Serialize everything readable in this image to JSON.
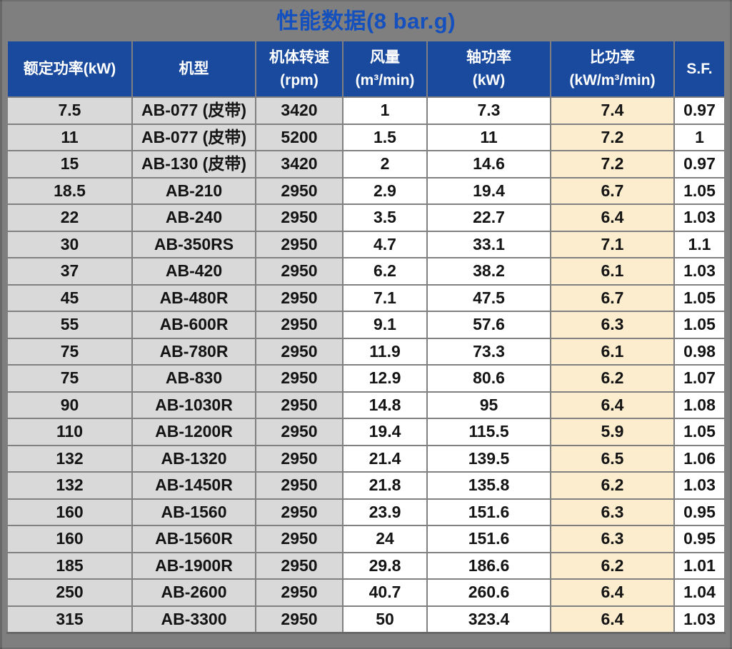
{
  "colors": {
    "page_bg": "#7F7F7F",
    "title_color": "#1450BE",
    "header_bg": "#1A4A9E",
    "header_text": "#FFFFFF",
    "row_bg_gray": "#D9D9D9",
    "row_bg_white": "#FFFFFF",
    "row_bg_cream": "#FBEDCE",
    "border_color": "#808080"
  },
  "page": {
    "title": "性能数据(8 bar.g)"
  },
  "table": {
    "columns": [
      {
        "id": "rated-power",
        "lines": [
          "额定功率(kW)"
        ]
      },
      {
        "id": "model",
        "lines": [
          "机型"
        ]
      },
      {
        "id": "rotor-speed",
        "lines": [
          "机体转速",
          "(rpm)"
        ]
      },
      {
        "id": "air-flow",
        "lines": [
          "风量",
          "(m³/min)"
        ]
      },
      {
        "id": "shaft-power",
        "lines": [
          "轴功率",
          "(kW)"
        ]
      },
      {
        "id": "specific-power",
        "lines": [
          "比功率",
          "(kW/m³/min)"
        ]
      },
      {
        "id": "service-factor",
        "lines": [
          "S.F."
        ]
      }
    ],
    "rows": [
      [
        "7.5",
        "AB-077 (皮带)",
        "3420",
        "1",
        "7.3",
        "7.4",
        "0.97"
      ],
      [
        "11",
        "AB-077 (皮带)",
        "5200",
        "1.5",
        "11",
        "7.2",
        "1"
      ],
      [
        "15",
        "AB-130 (皮带)",
        "3420",
        "2",
        "14.6",
        "7.2",
        "0.97"
      ],
      [
        "18.5",
        "AB-210",
        "2950",
        "2.9",
        "19.4",
        "6.7",
        "1.05"
      ],
      [
        "22",
        "AB-240",
        "2950",
        "3.5",
        "22.7",
        "6.4",
        "1.03"
      ],
      [
        "30",
        "AB-350RS",
        "2950",
        "4.7",
        "33.1",
        "7.1",
        "1.1"
      ],
      [
        "37",
        "AB-420",
        "2950",
        "6.2",
        "38.2",
        "6.1",
        "1.03"
      ],
      [
        "45",
        "AB-480R",
        "2950",
        "7.1",
        "47.5",
        "6.7",
        "1.05"
      ],
      [
        "55",
        "AB-600R",
        "2950",
        "9.1",
        "57.6",
        "6.3",
        "1.05"
      ],
      [
        "75",
        "AB-780R",
        "2950",
        "11.9",
        "73.3",
        "6.1",
        "0.98"
      ],
      [
        "75",
        "AB-830",
        "2950",
        "12.9",
        "80.6",
        "6.2",
        "1.07"
      ],
      [
        "90",
        "AB-1030R",
        "2950",
        "14.8",
        "95",
        "6.4",
        "1.08"
      ],
      [
        "110",
        "AB-1200R",
        "2950",
        "19.4",
        "115.5",
        "5.9",
        "1.05"
      ],
      [
        "132",
        "AB-1320",
        "2950",
        "21.4",
        "139.5",
        "6.5",
        "1.06"
      ],
      [
        "132",
        "AB-1450R",
        "2950",
        "21.8",
        "135.8",
        "6.2",
        "1.03"
      ],
      [
        "160",
        "AB-1560",
        "2950",
        "23.9",
        "151.6",
        "6.3",
        "0.95"
      ],
      [
        "160",
        "AB-1560R",
        "2950",
        "24",
        "151.6",
        "6.3",
        "0.95"
      ],
      [
        "185",
        "AB-1900R",
        "2950",
        "29.8",
        "186.6",
        "6.2",
        "1.01"
      ],
      [
        "250",
        "AB-2600",
        "2950",
        "40.7",
        "260.6",
        "6.4",
        "1.04"
      ],
      [
        "315",
        "AB-3300",
        "2950",
        "50",
        "323.4",
        "6.4",
        "1.03"
      ]
    ]
  }
}
